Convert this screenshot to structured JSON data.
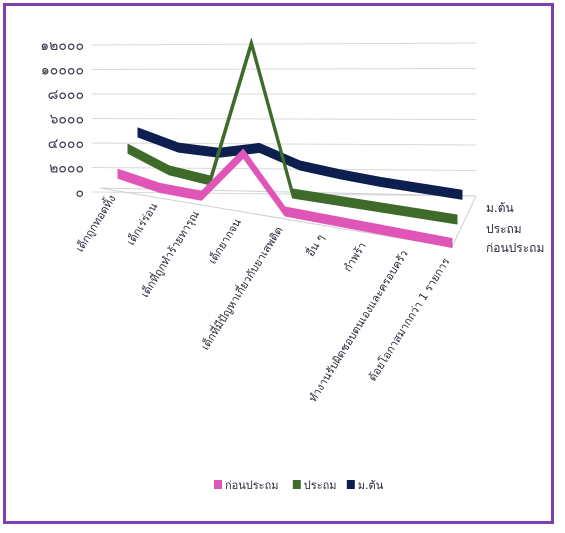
{
  "chart_data": {
    "type": "line",
    "title": "",
    "ylim": [
      0,
      12000
    ],
    "yticks": [
      "๑๒๐๐๐",
      "๑๐๐๐๐",
      "๘๐๐๐",
      "๖๐๐๐",
      "๔๐๐๐",
      "๒๐๐๐",
      "๐"
    ],
    "categories": [
      "เด็กถูกทอดทิ้ง",
      "เด็กเร่ร่อน",
      "เด็กที่ถูกทำร้ายทารุณ",
      "เด็กยากจน",
      "เด็กที่มีปัญหาเกี่ยวกับยาเสพติด",
      "อื่น ๆ",
      "กำพร้า",
      "ทำงานรับผิดชอบตนเองและครอบครัว",
      "ด้อยโอกาสมากกว่า 1 รายการ"
    ],
    "series": [
      {
        "name": "ก่อนประถม",
        "color": "#e055b8",
        "values": [
          500,
          0,
          0,
          4000,
          0,
          0,
          0,
          0,
          0
        ]
      },
      {
        "name": "ประถม",
        "color": "#3f6b2a",
        "values": [
          1500,
          300,
          0,
          11500,
          0,
          0,
          0,
          0,
          0
        ]
      },
      {
        "name": "ม.ต้น",
        "color": "#0d1f4f",
        "values": [
          1800,
          1000,
          1000,
          1800,
          800,
          500,
          300,
          200,
          100
        ]
      }
    ],
    "legend_position": "bottom",
    "grid": true
  }
}
